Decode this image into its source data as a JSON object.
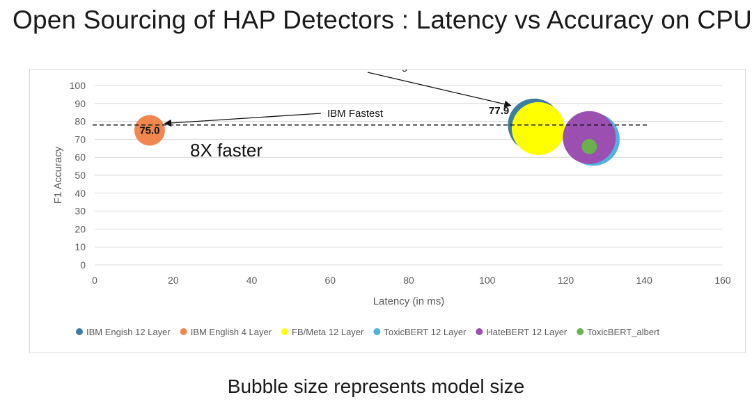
{
  "slide": {
    "title": "Open Sourcing of HAP Detectors :  Latency vs Accuracy on CPU",
    "footer": "Bubble size represents  model size"
  },
  "chart_data": {
    "type": "bubble",
    "xlabel": "Latency (in ms)",
    "ylabel": "F1 Accuracy",
    "xlim": [
      0,
      160
    ],
    "ylim": [
      0,
      100
    ],
    "x_ticks": [
      0,
      20,
      40,
      60,
      80,
      100,
      120,
      140,
      160
    ],
    "y_ticks": [
      0,
      10,
      20,
      30,
      40,
      50,
      60,
      70,
      80,
      90,
      100
    ],
    "grid": "horizontal",
    "legend_position": "bottom",
    "series": [
      {
        "name": "IBM Engish 12 Layer",
        "color": "#3b7ea1",
        "x": 112,
        "y": 78,
        "size": 12
      },
      {
        "name": "IBM English 4 Layer",
        "color": "#f0874e",
        "x": 14,
        "y": 75,
        "size": 4
      },
      {
        "name": "FB/Meta 12 Layer",
        "color": "#ffff00",
        "x": 113,
        "y": 76,
        "size": 12
      },
      {
        "name": "ToxicBERT 12 Layer",
        "color": "#4db3e0",
        "x": 127,
        "y": 70,
        "size": 12
      },
      {
        "name": "HateBERT 12 Layer",
        "color": "#9b4fb0",
        "x": 126,
        "y": 71,
        "size": 12
      },
      {
        "name": "ToxicBERT_albert",
        "color": "#6ab04c",
        "x": 126,
        "y": 66,
        "size": 1
      }
    ],
    "reference_line": {
      "y": 78,
      "x_start": 0,
      "x_end": 141,
      "style": "dashed"
    },
    "data_labels": [
      {
        "text": "75.0",
        "x": 14,
        "y": 75
      },
      {
        "text": "77.9",
        "x": 103,
        "y": 86
      }
    ],
    "annotations": [
      {
        "text": "IBM Best Performing"
      },
      {
        "text": "IBM Fastest"
      },
      {
        "text": "8X faster"
      }
    ]
  }
}
